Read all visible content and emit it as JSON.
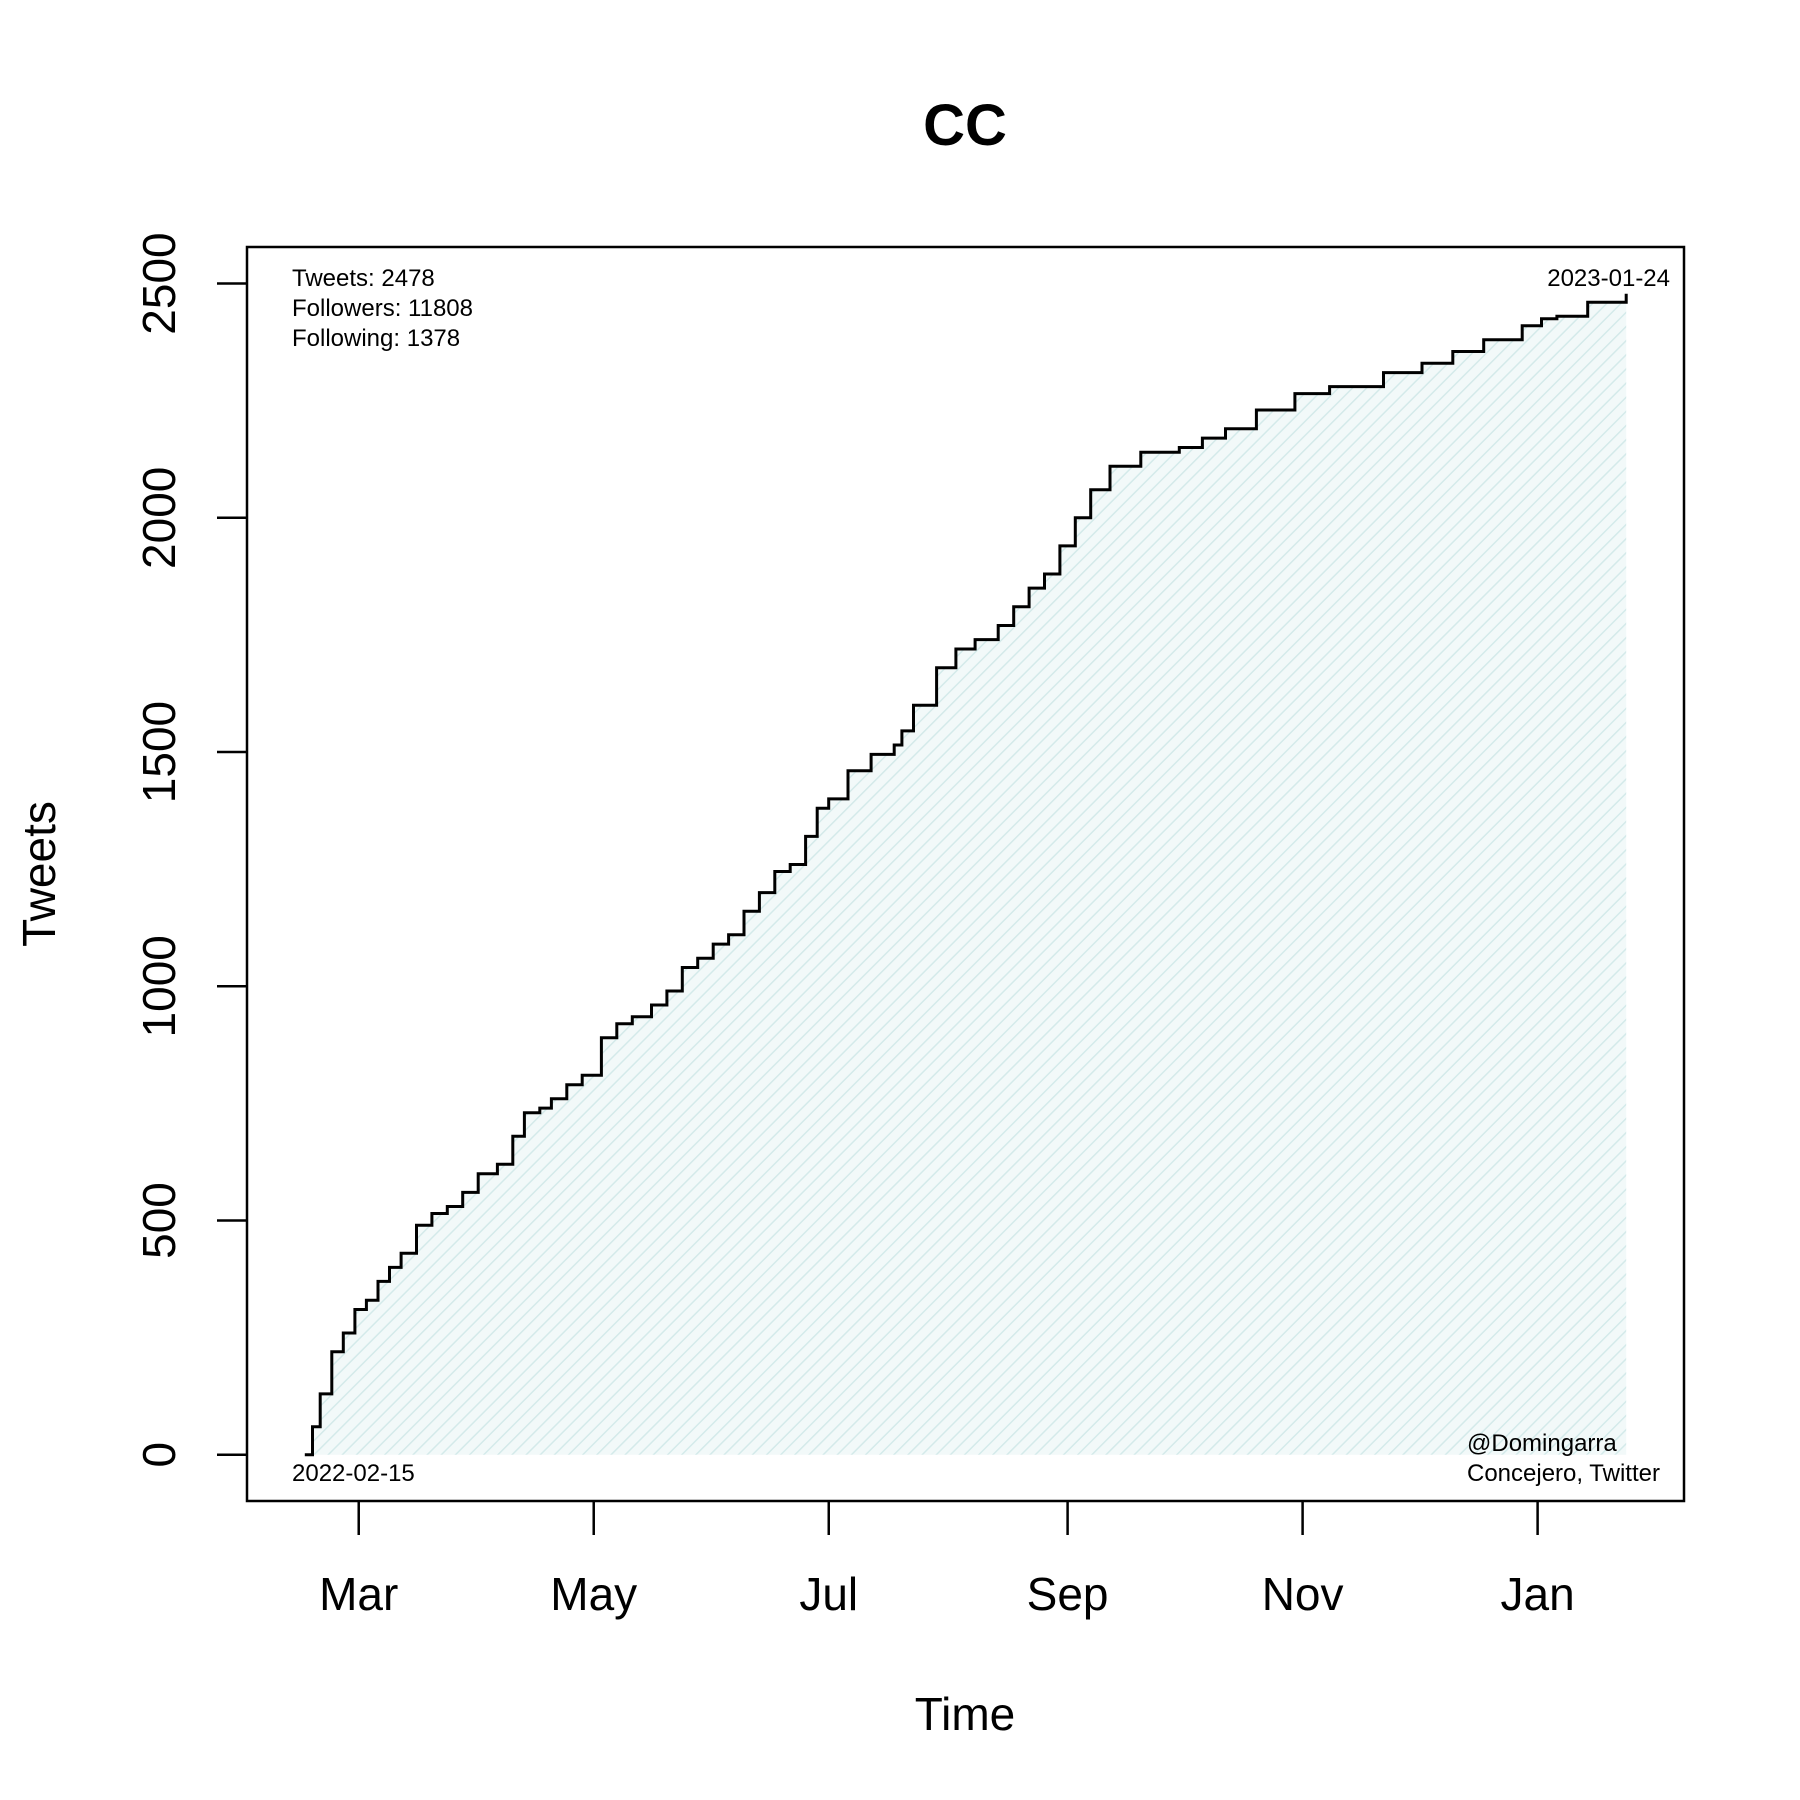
{
  "chart_data": {
    "type": "area",
    "title": "CC",
    "xlabel": "Time",
    "ylabel": "Tweets",
    "xlim": [
      "2022-01-31",
      "2023-02-08"
    ],
    "ylim": [
      0,
      2500
    ],
    "x_ticks": [
      {
        "date": "2022-03-01",
        "label": "Mar"
      },
      {
        "date": "2022-05-01",
        "label": "May"
      },
      {
        "date": "2022-07-01",
        "label": "Jul"
      },
      {
        "date": "2022-09-01",
        "label": "Sep"
      },
      {
        "date": "2022-11-01",
        "label": "Nov"
      },
      {
        "date": "2023-01-01",
        "label": "Jan"
      }
    ],
    "y_ticks": [
      0,
      500,
      1000,
      1500,
      2000,
      2500
    ],
    "grid": false,
    "fill_color": "#e0f0f0",
    "line_color": "#000000",
    "series": [
      {
        "x": [
          "2022-02-15",
          "2022-02-17",
          "2022-02-19",
          "2022-02-22",
          "2022-02-25",
          "2022-02-28",
          "2022-03-03",
          "2022-03-06",
          "2022-03-09",
          "2022-03-12",
          "2022-03-16",
          "2022-03-20",
          "2022-03-24",
          "2022-03-28",
          "2022-04-01",
          "2022-04-06",
          "2022-04-10",
          "2022-04-13",
          "2022-04-17",
          "2022-04-20",
          "2022-04-24",
          "2022-04-28",
          "2022-05-03",
          "2022-05-07",
          "2022-05-11",
          "2022-05-16",
          "2022-05-20",
          "2022-05-24",
          "2022-05-28",
          "2022-06-01",
          "2022-06-05",
          "2022-06-09",
          "2022-06-13",
          "2022-06-17",
          "2022-06-21",
          "2022-06-25",
          "2022-06-28",
          "2022-07-01",
          "2022-07-06",
          "2022-07-12",
          "2022-07-18",
          "2022-07-20",
          "2022-07-23",
          "2022-07-29",
          "2022-08-03",
          "2022-08-08",
          "2022-08-14",
          "2022-08-18",
          "2022-08-22",
          "2022-08-26",
          "2022-08-30",
          "2022-09-03",
          "2022-09-07",
          "2022-09-12",
          "2022-09-20",
          "2022-09-30",
          "2022-10-06",
          "2022-10-12",
          "2022-10-20",
          "2022-10-30",
          "2022-11-08",
          "2022-11-22",
          "2022-12-02",
          "2022-12-10",
          "2022-12-18",
          "2022-12-28",
          "2023-01-02",
          "2023-01-06",
          "2023-01-14",
          "2023-01-24"
        ],
        "values": [
          0,
          60,
          130,
          220,
          260,
          310,
          330,
          370,
          400,
          430,
          490,
          515,
          530,
          560,
          600,
          620,
          680,
          730,
          740,
          760,
          790,
          810,
          890,
          920,
          935,
          960,
          990,
          1040,
          1060,
          1090,
          1110,
          1160,
          1200,
          1245,
          1260,
          1320,
          1380,
          1400,
          1460,
          1495,
          1515,
          1545,
          1600,
          1680,
          1720,
          1740,
          1770,
          1810,
          1850,
          1880,
          1940,
          2000,
          2060,
          2110,
          2140,
          2150,
          2170,
          2190,
          2230,
          2265,
          2280,
          2310,
          2330,
          2355,
          2380,
          2410,
          2425,
          2430,
          2460,
          2478
        ]
      }
    ],
    "annotations": {
      "tweets": "Tweets: 2478",
      "followers": "Followers: 11808",
      "following": "Following: 1378",
      "start_date": "2022-02-15",
      "end_date": "2023-01-24",
      "credit_handle": "@Domingarra",
      "credit_source": "Concejero, Twitter"
    }
  }
}
